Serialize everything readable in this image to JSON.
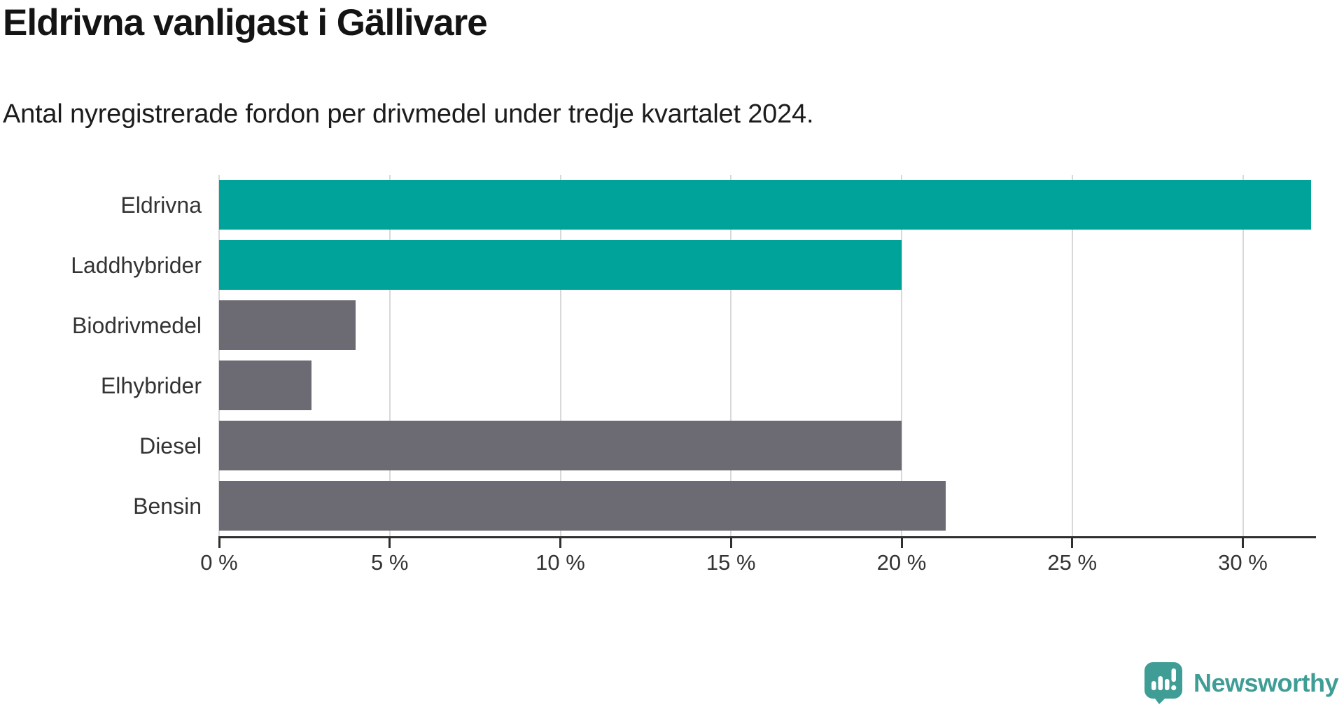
{
  "chart": {
    "title": "Eldrivna vanligast i Gällivare",
    "subtitle": "Antal nyregistrerade fordon per drivmedel under tredje kvartalet 2024."
  },
  "footer": {
    "brand": "Newsworthy"
  },
  "colors": {
    "accent_teal": "#00a39a",
    "bar_gray": "#6c6a72",
    "logo_teal": "#3f9d96",
    "gridline": "#d8d8d8",
    "axis": "#2f2f2f"
  },
  "chart_data": {
    "type": "bar",
    "orientation": "horizontal",
    "title": "Eldrivna vanligast i Gällivare",
    "subtitle": "Antal nyregistrerade fordon per drivmedel under tredje kvartalet 2024.",
    "categories": [
      "Eldrivna",
      "Laddhybrider",
      "Biodrivmedel",
      "Elhybrider",
      "Diesel",
      "Bensin"
    ],
    "values": [
      32,
      20,
      4,
      2.7,
      20,
      21.3
    ],
    "unit": "%",
    "bar_colors": [
      "#00a39a",
      "#00a39a",
      "#6c6a72",
      "#6c6a72",
      "#6c6a72",
      "#6c6a72"
    ],
    "x_ticks": [
      "0 %",
      "5 %",
      "10 %",
      "15 %",
      "20 %",
      "25 %",
      "30 %"
    ],
    "x_tick_values": [
      0,
      5,
      10,
      15,
      20,
      25,
      30
    ],
    "xlim": [
      0,
      32.15
    ],
    "grid": true,
    "legend": "none"
  }
}
